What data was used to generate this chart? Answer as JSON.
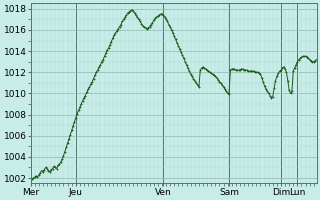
{
  "background_color": "#c8ece8",
  "line_color": "#1a5c1a",
  "grid_color_minor": "#b0d4ce",
  "grid_color_major": "#90b8b2",
  "vline_color": "#507868",
  "ylim": [
    1001.5,
    1018.5
  ],
  "yticks": [
    1002,
    1004,
    1006,
    1008,
    1010,
    1012,
    1014,
    1016,
    1018
  ],
  "day_labels": [
    "Mer",
    "Jeu",
    "Ven",
    "Sam",
    "Dim",
    "Lun"
  ],
  "total_points": 209,
  "tick_fontsize": 6.5,
  "pressure_data": [
    0,
    1002.0,
    1,
    1001.9,
    2,
    1002.0,
    3,
    1002.1,
    4,
    1002.2,
    5,
    1002.1,
    6,
    1002.3,
    7,
    1002.5,
    8,
    1002.7,
    9,
    1002.6,
    10,
    1002.8,
    11,
    1003.0,
    12,
    1002.9,
    13,
    1002.7,
    14,
    1002.6,
    15,
    1002.8,
    16,
    1002.9,
    17,
    1003.1,
    18,
    1003.0,
    19,
    1002.9,
    20,
    1003.2,
    21,
    1003.3,
    22,
    1003.5,
    23,
    1003.8,
    24,
    1004.1,
    25,
    1004.5,
    26,
    1004.9,
    27,
    1005.3,
    28,
    1005.7,
    29,
    1006.1,
    30,
    1006.5,
    31,
    1006.9,
    32,
    1007.3,
    33,
    1007.7,
    34,
    1008.1,
    35,
    1008.4,
    36,
    1008.7,
    37,
    1009.0,
    38,
    1009.3,
    39,
    1009.6,
    40,
    1009.8,
    41,
    1010.1,
    42,
    1010.4,
    43,
    1010.6,
    44,
    1010.9,
    45,
    1011.1,
    46,
    1011.4,
    47,
    1011.7,
    48,
    1012.0,
    49,
    1012.2,
    50,
    1012.5,
    51,
    1012.7,
    52,
    1013.0,
    53,
    1013.2,
    54,
    1013.5,
    55,
    1013.8,
    56,
    1014.1,
    57,
    1014.3,
    58,
    1014.6,
    59,
    1014.9,
    60,
    1015.2,
    61,
    1015.5,
    62,
    1015.7,
    63,
    1015.9,
    64,
    1016.1,
    65,
    1016.3,
    66,
    1016.5,
    67,
    1016.8,
    68,
    1017.0,
    69,
    1017.2,
    70,
    1017.4,
    71,
    1017.6,
    72,
    1017.7,
    73,
    1017.8,
    74,
    1017.9,
    75,
    1017.8,
    76,
    1017.6,
    77,
    1017.4,
    78,
    1017.2,
    79,
    1017.0,
    80,
    1016.8,
    81,
    1016.6,
    82,
    1016.4,
    83,
    1016.3,
    84,
    1016.2,
    85,
    1016.1,
    86,
    1016.2,
    87,
    1016.3,
    88,
    1016.5,
    89,
    1016.7,
    90,
    1016.9,
    91,
    1017.1,
    92,
    1017.2,
    93,
    1017.3,
    94,
    1017.4,
    95,
    1017.5,
    96,
    1017.5,
    97,
    1017.4,
    98,
    1017.2,
    99,
    1017.0,
    100,
    1016.8,
    101,
    1016.5,
    102,
    1016.3,
    103,
    1016.0,
    104,
    1015.7,
    105,
    1015.4,
    106,
    1015.1,
    107,
    1014.8,
    108,
    1014.5,
    109,
    1014.2,
    110,
    1013.9,
    111,
    1013.6,
    112,
    1013.3,
    113,
    1013.0,
    114,
    1012.7,
    115,
    1012.4,
    116,
    1012.1,
    117,
    1011.8,
    118,
    1011.6,
    119,
    1011.4,
    120,
    1011.2,
    121,
    1011.0,
    122,
    1010.8,
    123,
    1010.6,
    124,
    1012.2,
    125,
    1012.4,
    126,
    1012.5,
    127,
    1012.4,
    128,
    1012.3,
    129,
    1012.2,
    130,
    1012.1,
    131,
    1012.0,
    132,
    1011.9,
    133,
    1011.8,
    134,
    1011.7,
    135,
    1011.6,
    136,
    1011.5,
    137,
    1011.3,
    138,
    1011.1,
    139,
    1011.0,
    140,
    1010.8,
    141,
    1010.6,
    142,
    1010.4,
    143,
    1010.2,
    144,
    1010.0,
    145,
    1009.9,
    146,
    1012.2,
    147,
    1012.3,
    148,
    1012.3,
    149,
    1012.3,
    150,
    1012.2,
    151,
    1012.2,
    152,
    1012.2,
    153,
    1012.2,
    154,
    1012.3,
    155,
    1012.3,
    156,
    1012.2,
    157,
    1012.2,
    158,
    1012.2,
    159,
    1012.1,
    160,
    1012.1,
    161,
    1012.1,
    162,
    1012.1,
    163,
    1012.1,
    164,
    1012.0,
    165,
    1012.0,
    166,
    1012.0,
    167,
    1011.9,
    168,
    1011.8,
    169,
    1011.5,
    170,
    1011.1,
    171,
    1010.7,
    172,
    1010.4,
    173,
    1010.2,
    174,
    1010.0,
    175,
    1009.8,
    176,
    1009.6,
    177,
    1009.7,
    178,
    1010.5,
    179,
    1011.2,
    180,
    1011.6,
    181,
    1011.9,
    182,
    1012.1,
    183,
    1012.2,
    184,
    1012.4,
    185,
    1012.5,
    186,
    1012.3,
    187,
    1012.0,
    188,
    1011.2,
    189,
    1010.3,
    190,
    1010.0,
    191,
    1010.2,
    192,
    1012.1,
    193,
    1012.4,
    194,
    1012.7,
    195,
    1013.0,
    196,
    1013.2,
    197,
    1013.3,
    198,
    1013.4,
    199,
    1013.5,
    200,
    1013.5,
    201,
    1013.5,
    202,
    1013.4,
    203,
    1013.3,
    204,
    1013.2,
    205,
    1013.1,
    206,
    1013.0,
    207,
    1013.0,
    208,
    1013.1,
    209,
    1013.2
  ]
}
